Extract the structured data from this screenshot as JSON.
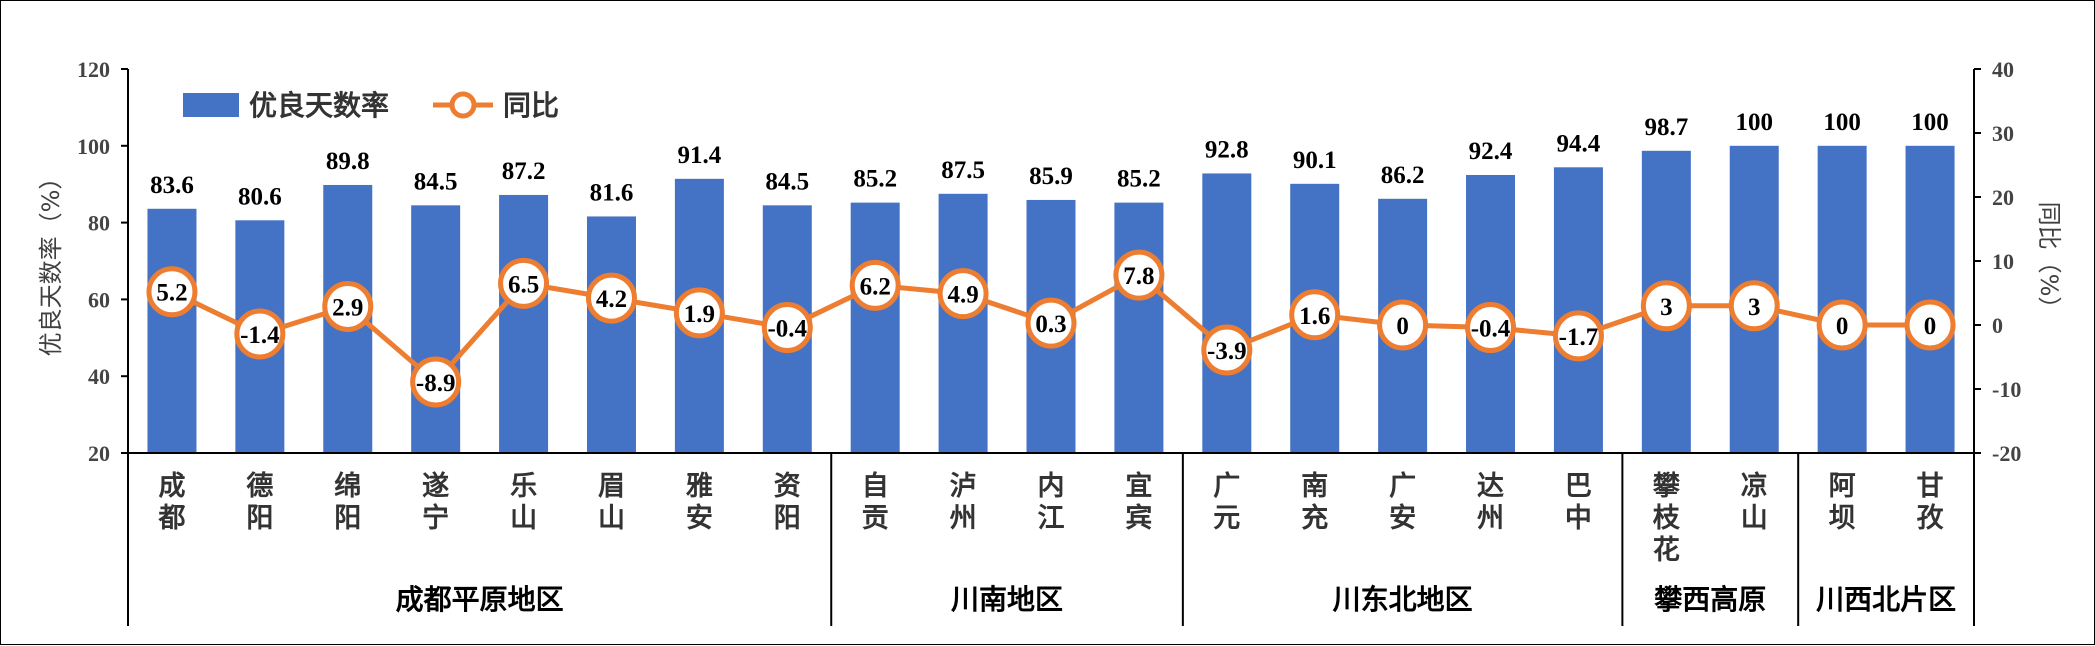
{
  "chart_data": {
    "type": "bar+line",
    "title": "",
    "ylabel": "优良天数率（%）",
    "y2label": "同比（%）",
    "ylim": [
      20,
      120
    ],
    "y2lim": [
      -20,
      40
    ],
    "yticks": [
      "20",
      "40",
      "60",
      "80",
      "100",
      "120"
    ],
    "y2ticks": [
      "-20",
      "-10",
      "0",
      "10",
      "20",
      "30",
      "40"
    ],
    "legend_position": "top-left",
    "categories": [
      "成都",
      "德阳",
      "绵阳",
      "遂宁",
      "乐山",
      "眉山",
      "雅安",
      "资阳",
      "自贡",
      "泸州",
      "内江",
      "宜宾",
      "广元",
      "南充",
      "广安",
      "达州",
      "巴中",
      "攀枝花",
      "凉山",
      "阿坝",
      "甘孜"
    ],
    "series": [
      {
        "name": "优良天数率",
        "type": "bar",
        "axis": "left",
        "color": "#4472C4",
        "values": [
          83.6,
          80.6,
          89.8,
          84.5,
          87.2,
          81.6,
          91.4,
          84.5,
          85.2,
          87.5,
          85.9,
          85.2,
          92.8,
          90.1,
          86.2,
          92.4,
          94.4,
          98.7,
          100,
          100,
          100
        ]
      },
      {
        "name": "同比",
        "type": "line",
        "axis": "right",
        "color": "#ED7D31",
        "values": [
          5.2,
          -1.4,
          2.9,
          -8.9,
          6.5,
          4.2,
          1.9,
          -0.4,
          6.2,
          4.9,
          0.3,
          7.8,
          -3.9,
          1.6,
          0,
          -0.4,
          -1.7,
          3,
          3,
          0,
          0
        ]
      }
    ],
    "groups": [
      {
        "label": "成都平原地区",
        "count": 8
      },
      {
        "label": "川南地区",
        "count": 4
      },
      {
        "label": "川东北地区",
        "count": 5
      },
      {
        "label": "攀西高原",
        "count": 2
      },
      {
        "label": "川西北片区",
        "count": 2
      }
    ]
  }
}
